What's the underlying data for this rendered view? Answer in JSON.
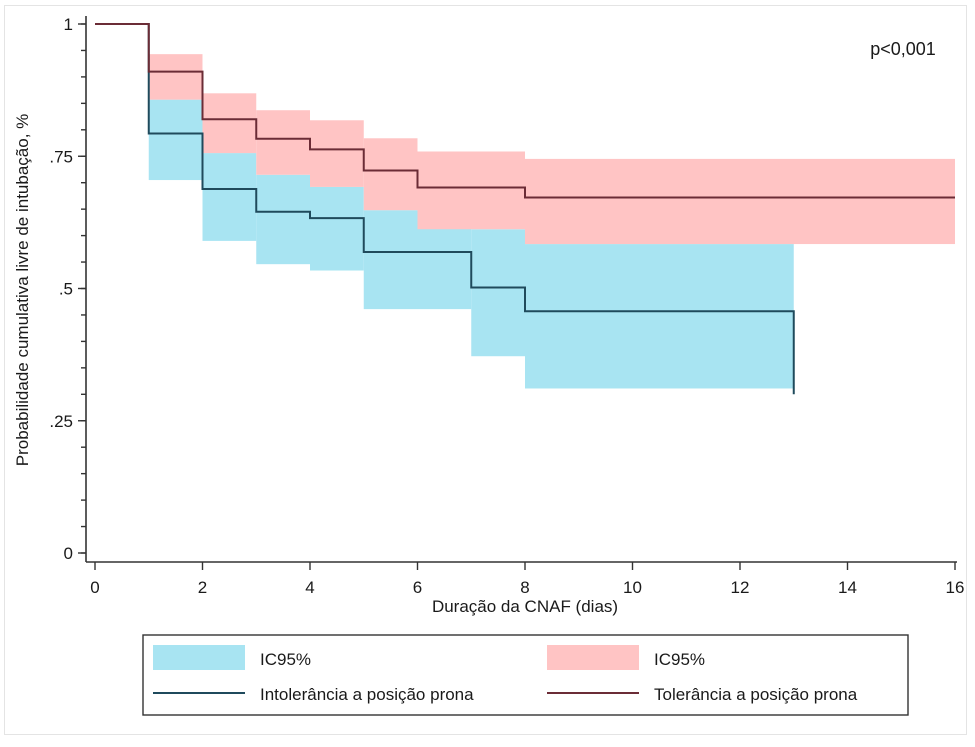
{
  "chart_data": {
    "type": "line",
    "subtype": "kaplan-meier-step",
    "title": "",
    "xlabel": "Duração da CNAF (dias)",
    "ylabel": "Probabilidade cumulativa livre de intubação, %",
    "xlim": [
      0,
      16
    ],
    "ylim": [
      0,
      1
    ],
    "x_ticks": [
      0,
      2,
      4,
      6,
      8,
      10,
      12,
      14,
      16
    ],
    "x_tick_labels": [
      "0",
      "2",
      "4",
      "6",
      "8",
      "10",
      "12",
      "14",
      "16"
    ],
    "y_ticks": [
      0,
      0.25,
      0.5,
      0.75,
      1
    ],
    "y_tick_labels": [
      "0",
      ".25",
      ".5",
      ".75",
      "1"
    ],
    "y_minor_step": 0.05,
    "grid": false,
    "annotation": "p<0,001",
    "annotation_position": "top-right",
    "legend_position": "bottom",
    "colors": {
      "intolerance_line": "#1f4a5c",
      "intolerance_ci": "#a8e4f2",
      "tolerance_line": "#6b2c36",
      "tolerance_ci": "#ffc4c4",
      "axis": "#333333"
    },
    "series": [
      {
        "name": "Intolerância a posição prona",
        "key": "intolerance",
        "x": [
          0,
          1,
          2,
          3,
          4,
          5,
          7,
          8,
          13
        ],
        "y": [
          1.0,
          0.793,
          0.688,
          0.645,
          0.633,
          0.569,
          0.502,
          0.457,
          0.3
        ],
        "end_x": 13,
        "ci": {
          "label": "IC95%",
          "x": [
            1,
            2,
            3,
            4,
            5,
            7,
            8
          ],
          "lower": [
            0.705,
            0.59,
            0.546,
            0.534,
            0.461,
            0.372,
            0.311
          ],
          "upper": [
            0.857,
            0.756,
            0.715,
            0.692,
            0.648,
            0.612,
            0.584
          ],
          "end_x": 13
        }
      },
      {
        "name": "Tolerância a posição prona",
        "key": "tolerance",
        "x": [
          0,
          1,
          2,
          3,
          4,
          5,
          6,
          8
        ],
        "y": [
          1.0,
          0.91,
          0.82,
          0.783,
          0.763,
          0.723,
          0.691,
          0.672
        ],
        "end_x": 16,
        "ci": {
          "label": "IC95%",
          "x": [
            1,
            2,
            3,
            4,
            5,
            6,
            8
          ],
          "lower": [
            0.857,
            0.756,
            0.715,
            0.692,
            0.648,
            0.612,
            0.584
          ],
          "upper": [
            0.943,
            0.869,
            0.837,
            0.818,
            0.784,
            0.759,
            0.745
          ],
          "end_x": 16
        }
      }
    ],
    "legend": [
      {
        "label": "IC95%",
        "kind": "area",
        "series": "intolerance"
      },
      {
        "label": "IC95%",
        "kind": "area",
        "series": "tolerance"
      },
      {
        "label": "Intolerância a posição prona",
        "kind": "line",
        "series": "intolerance"
      },
      {
        "label": "Tolerância a posição prona",
        "kind": "line",
        "series": "tolerance"
      }
    ]
  }
}
